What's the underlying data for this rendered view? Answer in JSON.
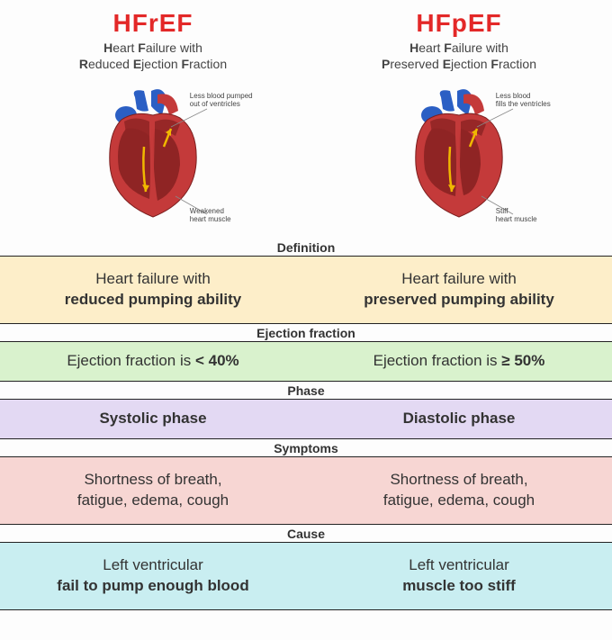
{
  "colors": {
    "hfref_accent": "#e32828",
    "hfpef_accent": "#e32828",
    "definition_bg": "#fdeec9",
    "ejection_bg": "#d9f2cd",
    "phase_bg": "#e3d9f3",
    "symptoms_bg": "#f7d6d3",
    "cause_bg": "#c9eef1",
    "heart_muscle": "#c43a3a",
    "heart_inner": "#8f2424",
    "heart_blue": "#2b5fc4",
    "heart_outline": "#7a1e1e",
    "arrow": "#f0b800"
  },
  "left": {
    "abbrev": "HFrEF",
    "full_line1_parts": [
      "H",
      "eart ",
      "F",
      "ailure with"
    ],
    "full_line2_parts": [
      "R",
      "educed ",
      "E",
      "jection ",
      "F",
      "raction"
    ],
    "diagram_label_top": "Less blood pumped\nout of ventricles",
    "diagram_label_bottom": "Weakened\nheart muscle"
  },
  "right": {
    "abbrev": "HFpEF",
    "full_line1_parts": [
      "H",
      "eart ",
      "F",
      "ailure with"
    ],
    "full_line2_parts": [
      "P",
      "reserved ",
      "E",
      "jection ",
      "F",
      "raction"
    ],
    "diagram_label_top": "Less blood\nfills the ventricles",
    "diagram_label_bottom": "Stiff\nheart muscle"
  },
  "sections": [
    {
      "header": "Definition",
      "bg_key": "definition_bg",
      "tall": true,
      "left_html": "Heart failure with<br><strong>reduced pumping ability</strong>",
      "right_html": "Heart failure with<br><strong>preserved pumping ability</strong>"
    },
    {
      "header": "Ejection fraction",
      "bg_key": "ejection_bg",
      "tall": false,
      "left_html": "Ejection fraction is <strong>&lt; 40%</strong>",
      "right_html": "Ejection fraction is <strong>&ge; 50%</strong>"
    },
    {
      "header": "Phase",
      "bg_key": "phase_bg",
      "tall": false,
      "left_html": "<strong>Systolic phase</strong>",
      "right_html": "<strong>Diastolic phase</strong>"
    },
    {
      "header": "Symptoms",
      "bg_key": "symptoms_bg",
      "tall": true,
      "left_html": "Shortness of breath,<br>fatigue, edema, cough",
      "right_html": "Shortness of breath,<br>fatigue, edema, cough"
    },
    {
      "header": "Cause",
      "bg_key": "cause_bg",
      "tall": true,
      "left_html": "Left ventricular<br><strong>fail to pump enough blood</strong>",
      "right_html": "Left ventricular<br><strong>muscle too stiff</strong>"
    }
  ]
}
